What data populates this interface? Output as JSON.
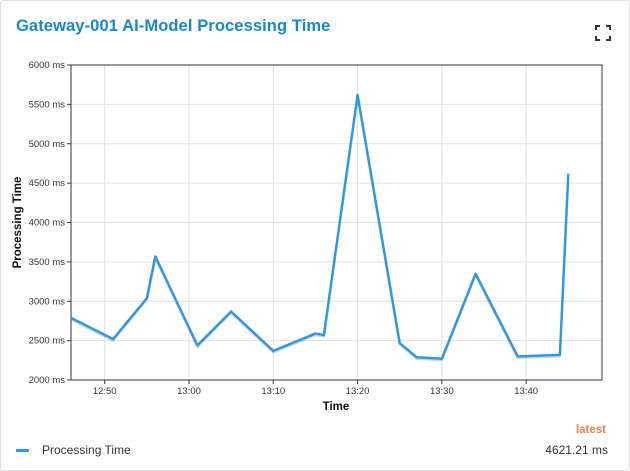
{
  "widget": {
    "title": "Gateway-001 AI-Model Processing Time",
    "fullscreen_icon": "fullscreen-icon"
  },
  "legend": {
    "latest_header": "latest",
    "series_label": "Processing Time",
    "latest_value": "4621.21 ms"
  },
  "colors": {
    "title": "#1a86c8",
    "series": "#2f97e0",
    "latest": "#f07e54",
    "grid": "#e0e0e0"
  },
  "chart_data": {
    "type": "line",
    "xlabel": "Time",
    "ylabel": "Processing Time",
    "ylim": [
      2000,
      6000
    ],
    "xlim": [
      "12:46",
      "13:49"
    ],
    "yticks": [
      2000,
      2500,
      3000,
      3500,
      4000,
      4500,
      5000,
      5500,
      6000
    ],
    "ytick_labels": [
      "2000 ms",
      "2500 ms",
      "3000 ms",
      "3500 ms",
      "4000 ms",
      "4500 ms",
      "5000 ms",
      "5500 ms",
      "6000 ms"
    ],
    "xticks": [
      "12:50",
      "13:00",
      "13:10",
      "13:20",
      "13:30",
      "13:40"
    ],
    "grid": true,
    "legend_position": "bottom",
    "series": [
      {
        "name": "Processing Time",
        "x": [
          "12:46",
          "12:51",
          "12:55",
          "12:56",
          "13:01",
          "13:05",
          "13:10",
          "13:15",
          "13:16",
          "13:20",
          "13:25",
          "13:27",
          "13:30",
          "13:34",
          "13:39",
          "13:44",
          "13:45"
        ],
        "values": [
          2790,
          2520,
          3040,
          3570,
          2440,
          2870,
          2370,
          2590,
          2570,
          5620,
          2470,
          2290,
          2270,
          3350,
          2300,
          2320,
          4621
        ]
      }
    ]
  }
}
